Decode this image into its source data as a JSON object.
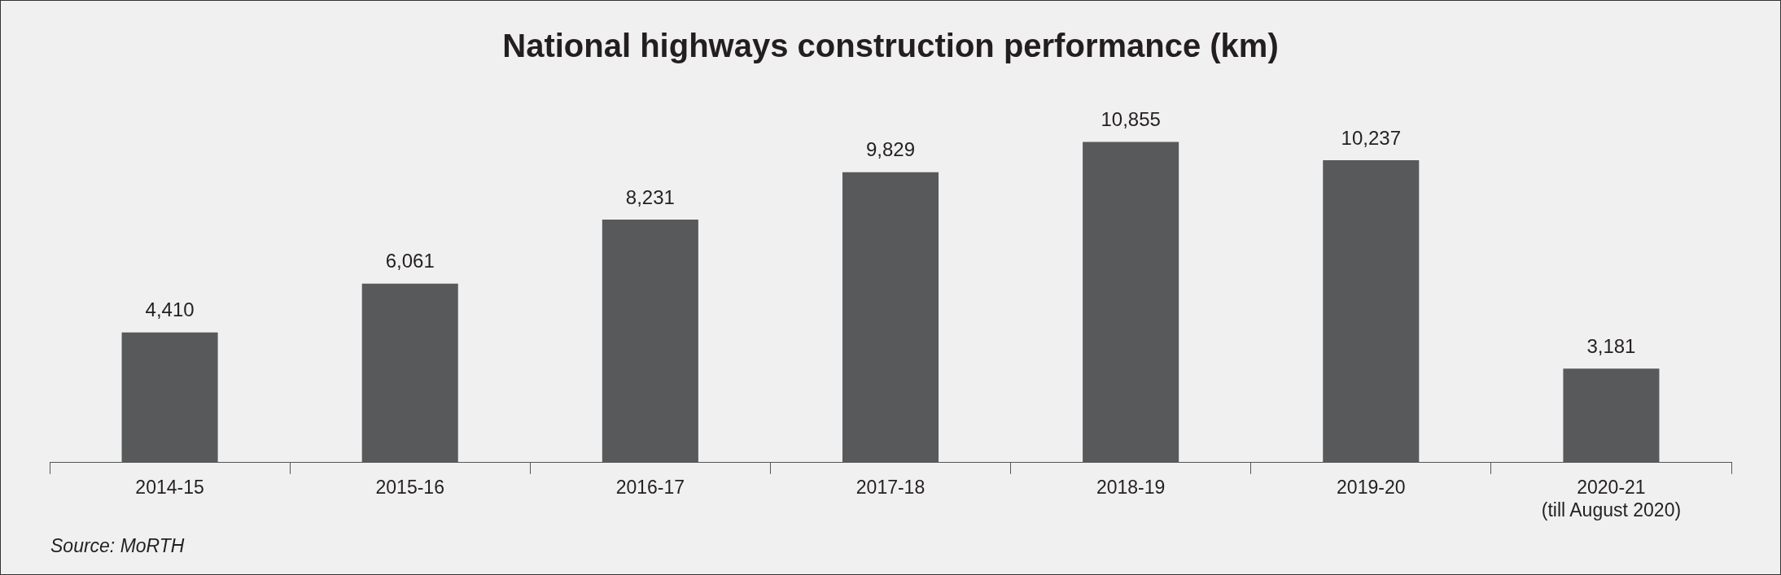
{
  "chart_data": {
    "type": "bar",
    "title": "National highways construction performance (km)",
    "categories": [
      "2014-15",
      "2015-16",
      "2016-17",
      "2017-18",
      "2018-19",
      "2019-20",
      "2020-21\n(till August 2020)"
    ],
    "values": [
      4410,
      6061,
      8231,
      9829,
      10855,
      10237,
      3181
    ],
    "value_labels": [
      "4,410",
      "6,061",
      "8,231",
      "9,829",
      "10,855",
      "10,237",
      "3,181"
    ],
    "color": "#58595b",
    "grid": false,
    "legend": false,
    "annotations": [
      "Source: MoRTH"
    ]
  }
}
